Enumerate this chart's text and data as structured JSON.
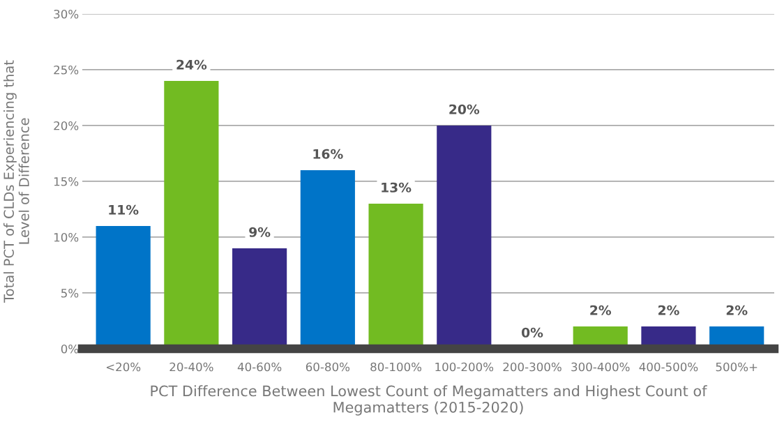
{
  "chart_data": {
    "type": "bar",
    "xlabel": "PCT Difference Between Lowest Count of Megamatters and Highest Count of\nMegamatters (2015-2020)",
    "ylabel": "Total PCT of CLDs Experiencing that\nLevel of Difference",
    "categories": [
      "<20%",
      "20-40%",
      "40-60%",
      "60-80%",
      "80-100%",
      "100-200%",
      "200-300%",
      "300-400%",
      "400-500%",
      "500%+"
    ],
    "values": [
      11,
      24,
      9,
      16,
      13,
      20,
      0,
      2,
      2,
      2
    ],
    "colors": [
      "#0074c8",
      "#72bb22",
      "#372a88",
      "#0074c8",
      "#72bb22",
      "#372a88",
      "#0074c8",
      "#72bb22",
      "#372a88",
      "#0074c8"
    ],
    "value_labels": [
      "11%",
      "24%",
      "9%",
      "16%",
      "13%",
      "20%",
      "0%",
      "2%",
      "2%",
      "2%"
    ],
    "ylim": [
      0,
      30
    ],
    "yticks": [
      {
        "value": 0,
        "label": "0%"
      },
      {
        "value": 5,
        "label": "5%"
      },
      {
        "value": 10,
        "label": "10%"
      },
      {
        "value": 15,
        "label": "15%"
      },
      {
        "value": 20,
        "label": "20%"
      },
      {
        "value": 25,
        "label": "25%"
      },
      {
        "value": 30,
        "label": "30%"
      }
    ],
    "grid": "y",
    "legend": false
  }
}
